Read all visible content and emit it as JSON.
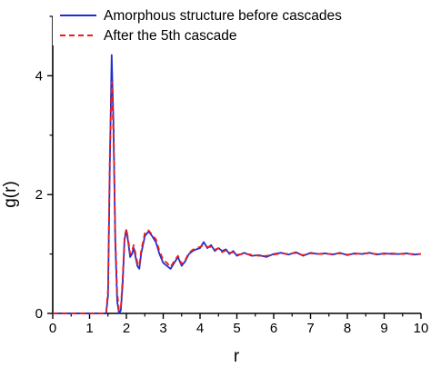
{
  "chart_data": {
    "type": "line",
    "title": "",
    "xlabel": "r",
    "ylabel": "g(r)",
    "xlim": [
      0,
      10
    ],
    "ylim": [
      0,
      5
    ],
    "xticks": [
      0,
      1,
      2,
      3,
      4,
      5,
      6,
      7,
      8,
      9,
      10
    ],
    "yticks": [
      0,
      2,
      4
    ],
    "grid": false,
    "legend_position": "top-left",
    "series": [
      {
        "name": "Amorphous structure before cascades",
        "color": "#1f2fcf",
        "style": "solid",
        "x": [
          0,
          1.45,
          1.5,
          1.55,
          1.6,
          1.65,
          1.7,
          1.75,
          1.8,
          1.85,
          1.9,
          1.95,
          2.0,
          2.05,
          2.1,
          2.15,
          2.2,
          2.25,
          2.3,
          2.35,
          2.4,
          2.5,
          2.6,
          2.7,
          2.8,
          2.9,
          3.0,
          3.1,
          3.2,
          3.3,
          3.4,
          3.5,
          3.6,
          3.7,
          3.8,
          3.9,
          4.0,
          4.1,
          4.2,
          4.3,
          4.4,
          4.5,
          4.6,
          4.7,
          4.8,
          4.9,
          5.0,
          5.2,
          5.4,
          5.6,
          5.8,
          6.0,
          6.2,
          6.4,
          6.6,
          6.8,
          7.0,
          7.2,
          7.4,
          7.6,
          7.8,
          8.0,
          8.2,
          8.4,
          8.6,
          8.8,
          9.0,
          9.2,
          9.4,
          9.6,
          9.8,
          10.0
        ],
        "y": [
          0,
          0,
          0.3,
          2.5,
          4.35,
          3.2,
          1.2,
          0.2,
          0,
          0.05,
          0.5,
          1.25,
          1.4,
          1.2,
          0.95,
          1.0,
          1.1,
          0.95,
          0.8,
          0.75,
          1.0,
          1.3,
          1.38,
          1.3,
          1.2,
          1.0,
          0.85,
          0.8,
          0.75,
          0.85,
          0.95,
          0.8,
          0.88,
          1.0,
          1.05,
          1.08,
          1.1,
          1.2,
          1.1,
          1.15,
          1.05,
          1.1,
          1.05,
          1.08,
          1.0,
          1.05,
          0.97,
          1.02,
          0.97,
          0.98,
          0.95,
          1.0,
          1.02,
          0.99,
          1.03,
          0.97,
          1.02,
          1.0,
          1.01,
          0.99,
          1.02,
          0.98,
          1.01,
          1.0,
          1.02,
          0.99,
          1.01,
          1.0,
          1.0,
          1.01,
          0.99,
          1.0
        ]
      },
      {
        "name": "After the 5th cascade",
        "color": "#ee1c1c",
        "style": "dashed",
        "x": [
          0,
          1.45,
          1.5,
          1.55,
          1.6,
          1.65,
          1.7,
          1.75,
          1.8,
          1.85,
          1.9,
          1.95,
          2.0,
          2.05,
          2.1,
          2.15,
          2.2,
          2.25,
          2.3,
          2.35,
          2.4,
          2.5,
          2.6,
          2.7,
          2.8,
          2.9,
          3.0,
          3.1,
          3.2,
          3.3,
          3.4,
          3.5,
          3.6,
          3.7,
          3.8,
          3.9,
          4.0,
          4.1,
          4.2,
          4.3,
          4.4,
          4.5,
          4.6,
          4.7,
          4.8,
          4.9,
          5.0,
          5.2,
          5.4,
          5.6,
          5.8,
          6.0,
          6.2,
          6.4,
          6.6,
          6.8,
          7.0,
          7.2,
          7.4,
          7.6,
          7.8,
          8.0,
          8.2,
          8.4,
          8.6,
          8.8,
          9.0,
          9.2,
          9.4,
          9.6,
          9.8,
          10.0
        ],
        "y": [
          0,
          0,
          0.4,
          2.7,
          3.9,
          3.0,
          1.3,
          0.35,
          0.05,
          0.1,
          0.6,
          1.3,
          1.42,
          1.25,
          1.0,
          1.05,
          1.15,
          1.0,
          0.85,
          0.8,
          1.05,
          1.35,
          1.4,
          1.32,
          1.25,
          1.05,
          0.9,
          0.85,
          0.78,
          0.88,
          0.97,
          0.83,
          0.9,
          1.02,
          1.07,
          1.1,
          1.12,
          1.15,
          1.12,
          1.12,
          1.07,
          1.1,
          1.03,
          1.06,
          1.02,
          1.03,
          0.99,
          1.0,
          0.99,
          0.97,
          0.97,
          0.99,
          1.01,
          1.0,
          1.02,
          0.98,
          1.01,
          1.0,
          1.0,
          1.0,
          1.01,
          0.99,
          1.0,
          1.01,
          1.01,
          1.0,
          1.0,
          1.01,
          1.0,
          1.0,
          1.0,
          1.0
        ]
      }
    ]
  }
}
